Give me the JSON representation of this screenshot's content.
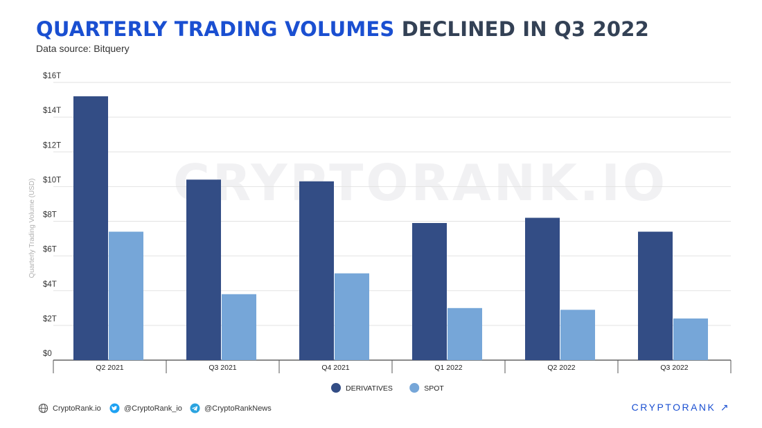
{
  "header": {
    "title_accent": "QUARTERLY TRADING VOLUMES",
    "title_rest": "DECLINED IN Q3 2022",
    "subtitle": "Data source: Bitquery"
  },
  "watermark": "CRYPTORANK.IO",
  "chart_data": {
    "type": "bar",
    "categories": [
      "Q2 2021",
      "Q3 2021",
      "Q4 2021",
      "Q1 2022",
      "Q2 2022",
      "Q3 2022"
    ],
    "series": [
      {
        "name": "DERIVATIVES",
        "values": [
          15.2,
          10.4,
          10.3,
          7.9,
          8.2,
          7.4
        ],
        "color": "#334d85"
      },
      {
        "name": "SPOT",
        "values": [
          7.4,
          3.8,
          5.0,
          3.0,
          2.9,
          2.4
        ],
        "color": "#76a6d8"
      }
    ],
    "ylabel": "Quarterly Trading Volume (USD)",
    "ylim": [
      0,
      16
    ],
    "yticks": [
      {
        "value": 0,
        "label": "$0"
      },
      {
        "value": 2,
        "label": "$2T"
      },
      {
        "value": 4,
        "label": "$4T"
      },
      {
        "value": 6,
        "label": "$6T"
      },
      {
        "value": 8,
        "label": "$8T"
      },
      {
        "value": 10,
        "label": "$10T"
      },
      {
        "value": 12,
        "label": "$12T"
      },
      {
        "value": 14,
        "label": "$14T"
      },
      {
        "value": 16,
        "label": "$16T"
      }
    ],
    "legend_position": "bottom-center",
    "grid": true
  },
  "footer": {
    "website": "CryptoRank.io",
    "twitter": "@CryptoRank_io",
    "telegram": "@CryptoRankNews",
    "brand": "CRYPTORANK ↗"
  }
}
